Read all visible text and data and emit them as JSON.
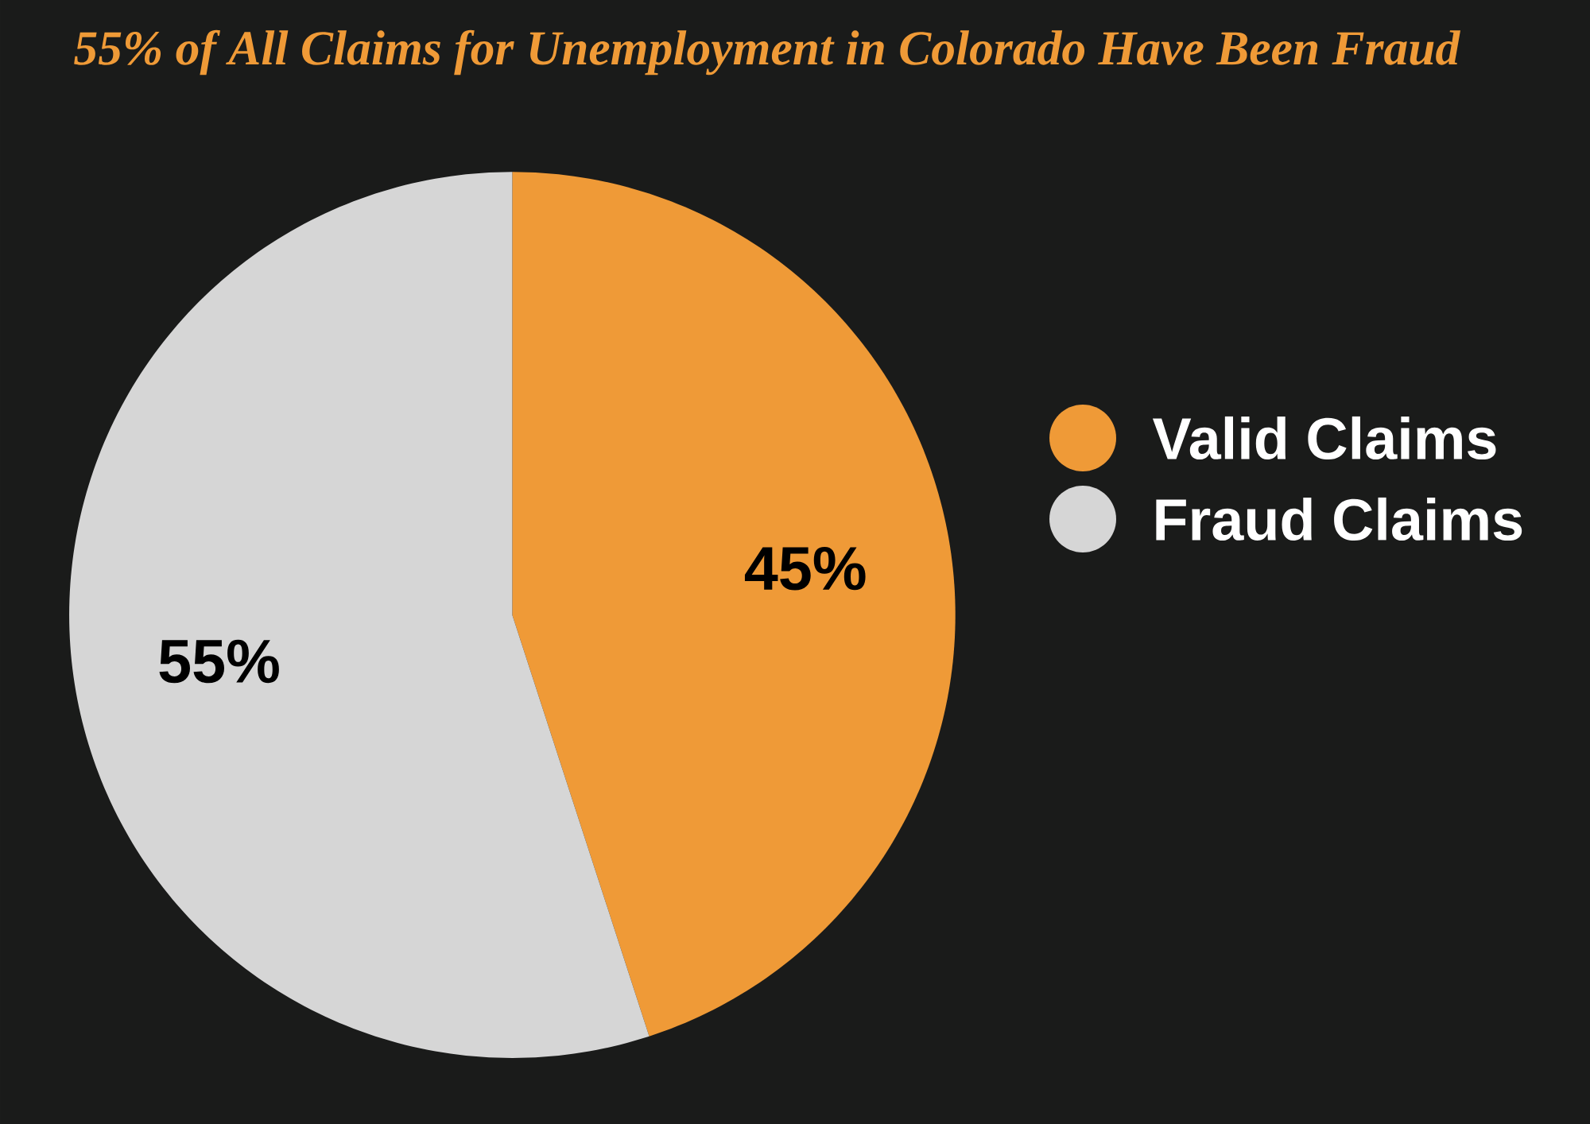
{
  "chart_data": {
    "type": "pie",
    "title": "55% of All Claims for Unemployment in Colorado Have Been Fraud",
    "categories": [
      "Valid Claims",
      "Fraud Claims"
    ],
    "values": [
      45,
      55
    ],
    "value_labels": [
      "45%",
      "55%"
    ],
    "colors": [
      "#ef9a37",
      "#d6d6d6"
    ],
    "legend": "right"
  }
}
